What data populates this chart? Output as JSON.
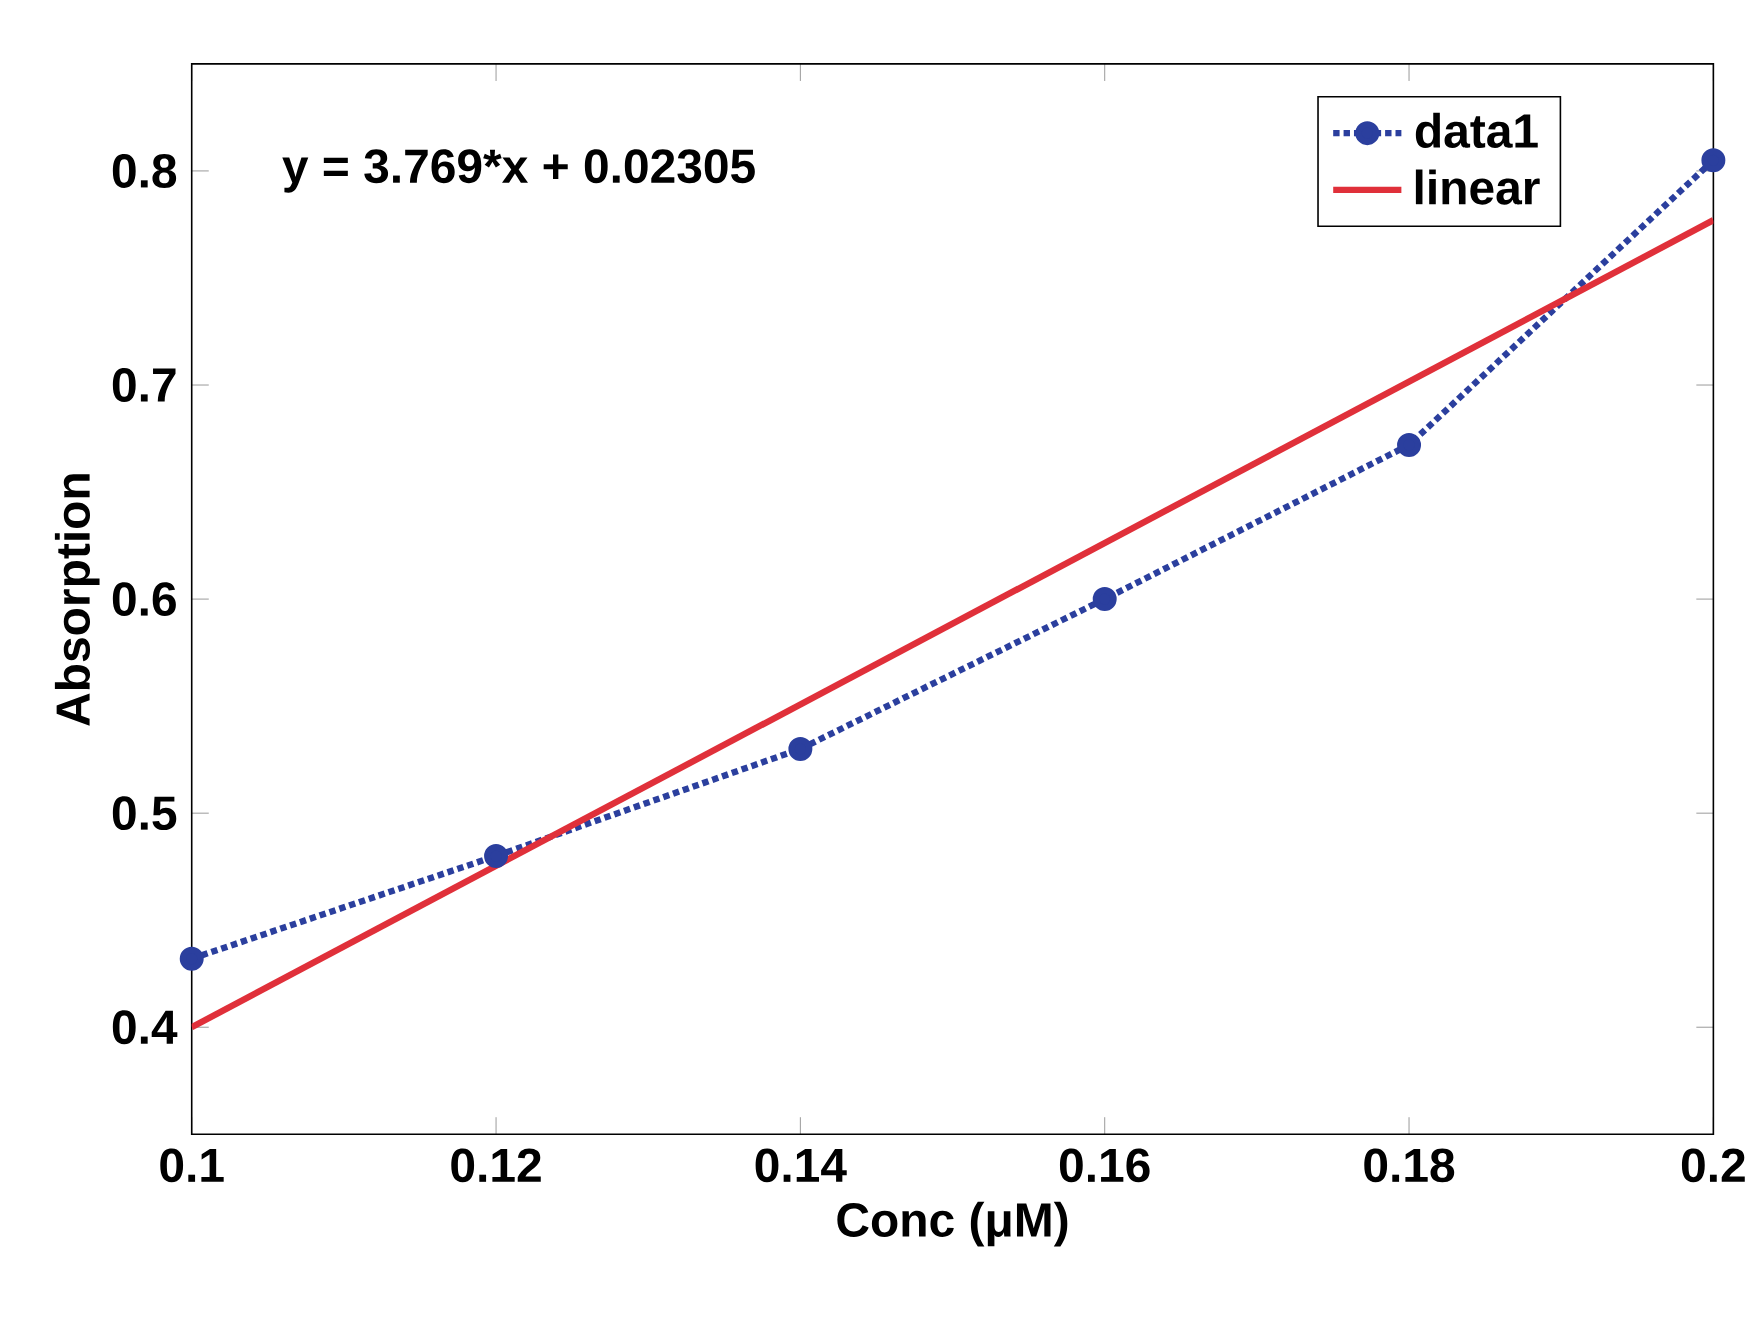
{
  "chart_data": {
    "type": "line",
    "xlabel": "Conc (μM)",
    "ylabel": "Absorption",
    "xlim": [
      0.1,
      0.2
    ],
    "ylim": [
      0.35,
      0.85
    ],
    "xticks": [
      0.1,
      0.12,
      0.14,
      0.16,
      0.18,
      0.2
    ],
    "yticks": [
      0.4,
      0.5,
      0.6,
      0.7,
      0.8
    ],
    "grid": false,
    "legend": "top right",
    "annotations": [
      "y = 3.769*x + 0.02305"
    ],
    "series": [
      {
        "name": "data1",
        "color": "#2b3f9e",
        "marker": "circle",
        "line_style": "dotted",
        "x": [
          0.1,
          0.12,
          0.14,
          0.16,
          0.18,
          0.2
        ],
        "values": [
          0.432,
          0.48,
          0.53,
          0.6,
          0.672,
          0.805
        ]
      },
      {
        "name": "linear",
        "color": "#e0303a",
        "marker": "none",
        "line_style": "solid",
        "x": [
          0.1,
          0.2
        ],
        "values": [
          0.4,
          0.777
        ]
      }
    ]
  }
}
